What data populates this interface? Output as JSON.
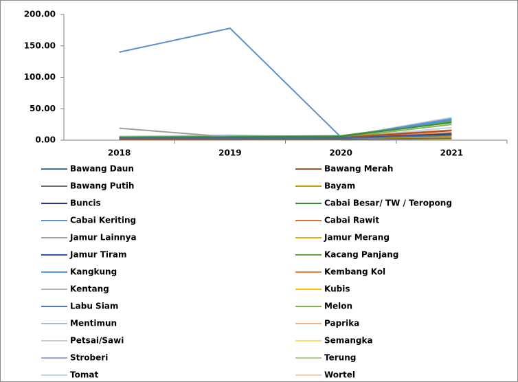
{
  "chart_data": {
    "type": "line",
    "categories": [
      "2018",
      "2019",
      "2020",
      "2021"
    ],
    "ylim": [
      0,
      200
    ],
    "yticks": [
      {
        "value": 0,
        "label": "0.00"
      },
      {
        "value": 50,
        "label": "50.00"
      },
      {
        "value": 100,
        "label": "100.00"
      },
      {
        "value": 150,
        "label": "150.00"
      },
      {
        "value": 200,
        "label": "200.00"
      }
    ],
    "legend": "bottom",
    "series": [
      {
        "name": "Bawang Daun",
        "color": "#3c6e9f",
        "values": [
          3,
          4,
          3,
          8
        ]
      },
      {
        "name": "Bawang Merah",
        "color": "#a0522d",
        "values": [
          2,
          3,
          4,
          15
        ]
      },
      {
        "name": "Bawang Putih",
        "color": "#6b6b6b",
        "values": [
          1,
          1,
          1,
          3
        ]
      },
      {
        "name": "Bayam",
        "color": "#c89a00",
        "values": [
          2,
          3,
          2,
          6
        ]
      },
      {
        "name": "Buncis",
        "color": "#1f3a93",
        "values": [
          3,
          2,
          3,
          10
        ]
      },
      {
        "name": "Cabai Besar/ TW / Teropong",
        "color": "#3a8a3a",
        "values": [
          4,
          5,
          6,
          28
        ]
      },
      {
        "name": "Cabai Keriting",
        "color": "#5a8fd0",
        "values": [
          140,
          178,
          5,
          32
        ]
      },
      {
        "name": "Cabai Rawit",
        "color": "#e07030",
        "values": [
          3,
          4,
          5,
          16
        ]
      },
      {
        "name": "Jamur Lainnya",
        "color": "#a0a0a0",
        "values": [
          19,
          5,
          4,
          8
        ]
      },
      {
        "name": "Jamur Merang",
        "color": "#e0b000",
        "values": [
          1,
          1,
          1,
          2
        ]
      },
      {
        "name": "Jamur Tiram",
        "color": "#2c55b0",
        "values": [
          2,
          2,
          3,
          7
        ]
      },
      {
        "name": "Kacang Panjang",
        "color": "#5fa845",
        "values": [
          5,
          6,
          7,
          30
        ]
      },
      {
        "name": "Kangkung",
        "color": "#4f9de0",
        "values": [
          4,
          6,
          5,
          34
        ]
      },
      {
        "name": "Kembang Kol",
        "color": "#f08030",
        "values": [
          2,
          3,
          3,
          12
        ]
      },
      {
        "name": "Kentang",
        "color": "#b4b4b4",
        "values": [
          1,
          2,
          2,
          5
        ]
      },
      {
        "name": "Kubis",
        "color": "#ffc000",
        "values": [
          3,
          4,
          3,
          9
        ]
      },
      {
        "name": "Labu Siam",
        "color": "#5078c0",
        "values": [
          2,
          3,
          2,
          6
        ]
      },
      {
        "name": "Melon",
        "color": "#80b850",
        "values": [
          3,
          4,
          4,
          25
        ]
      },
      {
        "name": "Mentimun",
        "color": "#9cc3e6",
        "values": [
          5,
          7,
          6,
          31
        ]
      },
      {
        "name": "Paprika",
        "color": "#f4b183",
        "values": [
          1,
          1,
          1,
          2
        ]
      },
      {
        "name": "Petsai/Sawi",
        "color": "#c9c9c9",
        "values": [
          6,
          8,
          5,
          36
        ]
      },
      {
        "name": "Semangka",
        "color": "#ffd966",
        "values": [
          2,
          3,
          3,
          7
        ]
      },
      {
        "name": "Stroberi",
        "color": "#8ea9db",
        "values": [
          1,
          1,
          1,
          3
        ]
      },
      {
        "name": "Terung",
        "color": "#a9d18e",
        "values": [
          4,
          5,
          5,
          33
        ]
      },
      {
        "name": "Tomat",
        "color": "#bdd7ee",
        "values": [
          3,
          4,
          4,
          20
        ]
      },
      {
        "name": "Wortel",
        "color": "#f8cbad",
        "values": [
          2,
          2,
          2,
          5
        ]
      }
    ]
  }
}
